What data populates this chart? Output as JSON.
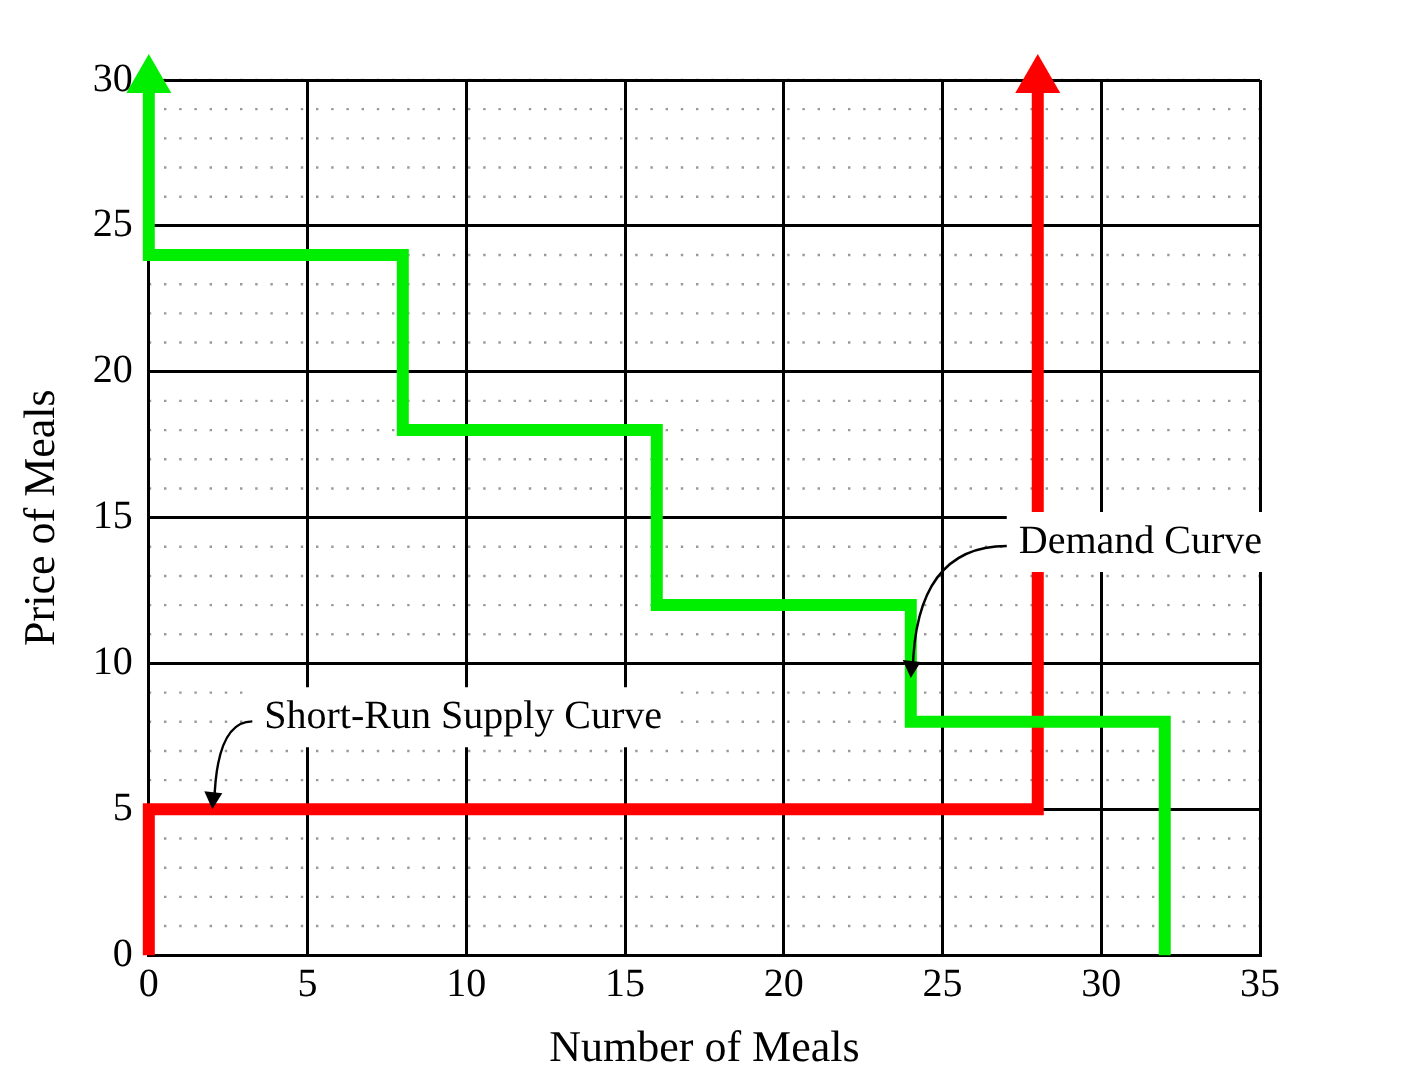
{
  "chart_data": {
    "type": "line",
    "xlabel": "Number of Meals",
    "ylabel": "Price of Meals",
    "xlim": [
      0,
      35
    ],
    "xticks": [
      0,
      5,
      10,
      15,
      20,
      25,
      30,
      35
    ],
    "ylim": [
      0,
      30
    ],
    "yticks": [
      0,
      5,
      10,
      15,
      20,
      25,
      30
    ],
    "grid": true,
    "legend": false,
    "marker": "none",
    "line_style": "solid",
    "series": [
      {
        "color": "#00ee00",
        "x": [
          0,
          0,
          8,
          8,
          16,
          16,
          24,
          24,
          32,
          32
        ],
        "values": [
          30,
          24,
          24,
          18,
          18,
          12,
          12,
          8,
          8,
          0
        ]
      },
      {
        "color": "#ff0000",
        "x": [
          0,
          0,
          28,
          28
        ],
        "values": [
          0,
          5,
          5,
          30
        ]
      }
    ],
    "annotations": [
      {
        "text": "Demand Curve",
        "x": 24,
        "y": 9.5
      },
      {
        "text": "Short-Run Supply Curve",
        "x": 2,
        "y": 5
      }
    ]
  }
}
